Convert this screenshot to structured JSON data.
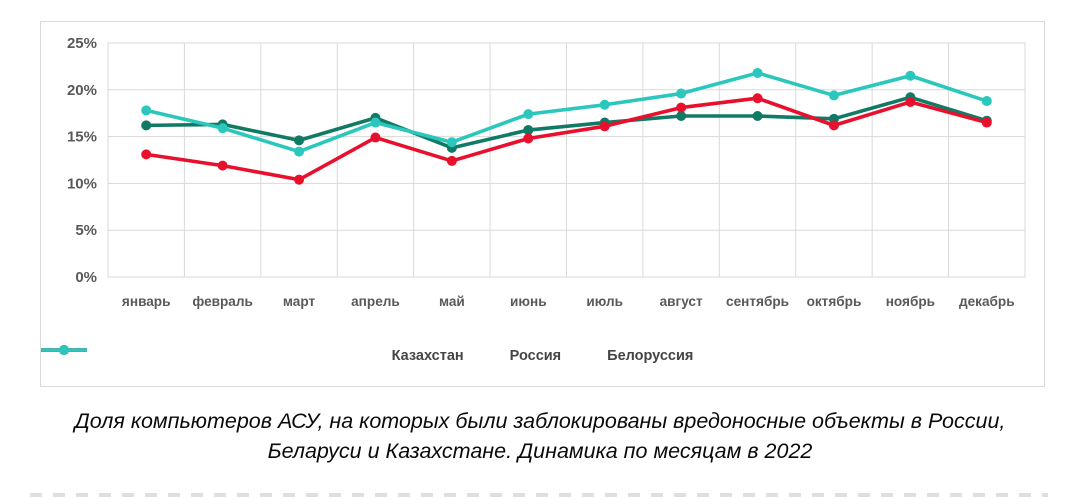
{
  "caption": {
    "line1": "Доля компьютеров АСУ, на которых были заблокированы вредоносные объекты в России,",
    "line2": "Беларуси и Казахстане. Динамика по месяцам в 2022"
  },
  "chart_data": {
    "type": "line",
    "title": "Доля компьютеров АСУ, на которых были заблокированы вредоносные объекты в России, Беларуси и Казахстане. Динамика по месяцам в 2022",
    "xlabel": "",
    "ylabel": "",
    "ylim": [
      0,
      25
    ],
    "grid": true,
    "legend_position": "bottom",
    "categories": [
      "январь",
      "февраль",
      "март",
      "апрель",
      "май",
      "июнь",
      "июль",
      "август",
      "сентябрь",
      "октябрь",
      "ноябрь",
      "декабрь"
    ],
    "y_ticks": [
      {
        "v": 0,
        "label": "0%"
      },
      {
        "v": 5,
        "label": "5%"
      },
      {
        "v": 10,
        "label": "10%"
      },
      {
        "v": 15,
        "label": "15%"
      },
      {
        "v": 20,
        "label": "20%"
      },
      {
        "v": 25,
        "label": "25%"
      }
    ],
    "series": [
      {
        "name": "Казахстан",
        "color": "#117a65",
        "values": [
          16.2,
          16.3,
          14.6,
          17.0,
          13.8,
          15.7,
          16.5,
          17.2,
          17.2,
          16.9,
          19.2,
          16.7
        ]
      },
      {
        "name": "Россия",
        "color": "#e8112d",
        "values": [
          13.1,
          11.9,
          10.4,
          14.9,
          12.4,
          14.8,
          16.1,
          18.1,
          19.1,
          16.2,
          18.7,
          16.5
        ]
      },
      {
        "name": "Белоруссия",
        "color": "#2bc7bd",
        "values": [
          17.8,
          15.9,
          13.4,
          16.5,
          14.4,
          17.4,
          18.4,
          19.6,
          21.8,
          19.4,
          21.5,
          18.8
        ]
      }
    ],
    "colors": {
      "grid": "#d9d9d9",
      "axis_text": "#595959",
      "legend_text": "#454545"
    }
  }
}
